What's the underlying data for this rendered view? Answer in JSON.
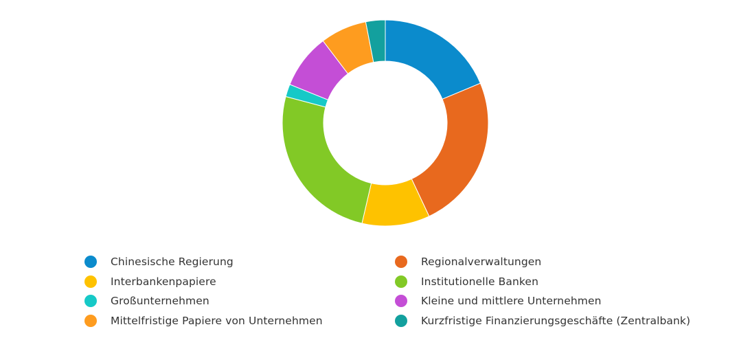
{
  "chart_data": {
    "type": "pie",
    "variant": "donut",
    "title": "",
    "legend_position": "bottom",
    "series": [
      {
        "name": "Chinesische Regierung",
        "value": 19.0,
        "color": "#0b8bcc"
      },
      {
        "name": "Regionalverwaltungen",
        "value": 24.7,
        "color": "#e8691e"
      },
      {
        "name": "Interbankenpapiere",
        "value": 10.8,
        "color": "#fec200"
      },
      {
        "name": "Institutionelle Banken",
        "value": 25.9,
        "color": "#82c926"
      },
      {
        "name": "Großunternehmen",
        "value": 2.0,
        "color": "#16c9c7"
      },
      {
        "name": "Kleine und mittlere Unternehmen",
        "value": 8.7,
        "color": "#c44ed6"
      },
      {
        "name": "Mittelfristige Papiere von Unternehmen",
        "value": 7.4,
        "color": "#fe9c1f"
      },
      {
        "name": "Kurzfristige Finanzierungsgeschäfte (Zentralbank)",
        "value": 3.1,
        "color": "#13a09e"
      }
    ]
  }
}
